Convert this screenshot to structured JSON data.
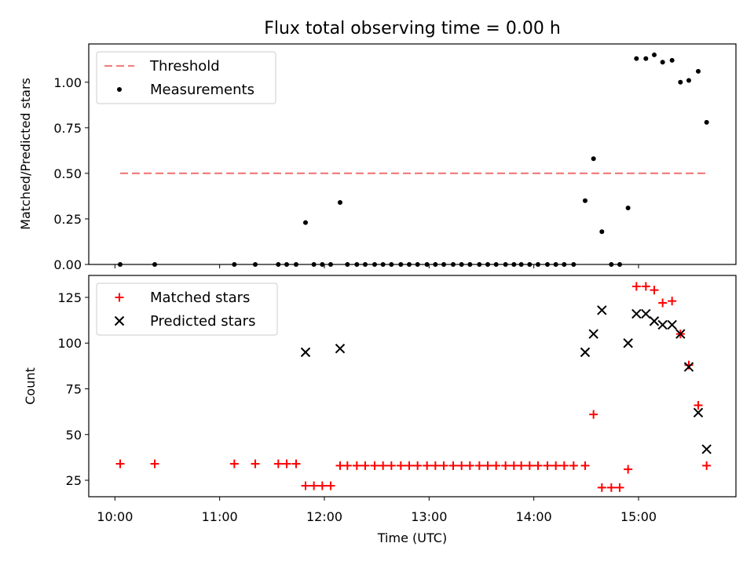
{
  "chart_data": {
    "type": "scatter",
    "title": "Flux total observing time = 0.00 h",
    "xlabel": "Time (UTC)",
    "x_ticks": [
      "10:00",
      "11:00",
      "12:00",
      "13:00",
      "14:00",
      "15:00"
    ],
    "x_tick_hours": [
      10,
      11,
      12,
      13,
      14,
      15
    ],
    "xlim_hours": [
      9.75,
      15.93
    ],
    "panels": [
      {
        "ylabel": "Matched/Predicted stars",
        "ylim": [
          0,
          1.21
        ],
        "y_ticks": [
          "0.00",
          "0.25",
          "0.50",
          "0.75",
          "1.00"
        ],
        "y_tick_values": [
          0,
          0.25,
          0.5,
          0.75,
          1.0
        ],
        "legend_position": "upper-left",
        "series": [
          {
            "name": "Threshold",
            "kind": "dashed-line",
            "color": "#f08080",
            "x": [
              10.05,
              15.67
            ],
            "y": [
              0.5,
              0.5
            ]
          },
          {
            "name": "Measurements",
            "kind": "dot",
            "color": "#000000",
            "x": [
              10.05,
              10.38,
              11.14,
              11.34,
              11.56,
              11.64,
              11.73,
              11.82,
              11.9,
              11.98,
              12.06,
              12.15,
              12.22,
              12.31,
              12.39,
              12.48,
              12.56,
              12.64,
              12.73,
              12.81,
              12.89,
              12.98,
              13.06,
              13.14,
              13.23,
              13.31,
              13.39,
              13.48,
              13.56,
              13.64,
              13.73,
              13.81,
              13.88,
              13.96,
              14.04,
              14.13,
              14.21,
              14.29,
              14.38,
              14.49,
              14.57,
              14.65,
              14.74,
              14.82,
              14.9,
              14.98,
              15.07,
              15.15,
              15.23,
              15.32,
              15.4,
              15.48,
              15.57,
              15.65
            ],
            "y": [
              0,
              0,
              0,
              0,
              0,
              0,
              0,
              0.23,
              0,
              0,
              0,
              0.34,
              0,
              0,
              0,
              0,
              0,
              0,
              0,
              0,
              0,
              0,
              0,
              0,
              0,
              0,
              0,
              0,
              0,
              0,
              0,
              0,
              0,
              0,
              0,
              0,
              0,
              0,
              0,
              0.35,
              0.58,
              0.18,
              0,
              0,
              0.31,
              1.13,
              1.13,
              1.15,
              1.11,
              1.12,
              1.0,
              1.01,
              1.06,
              0.78
            ]
          }
        ]
      },
      {
        "ylabel": "Count",
        "ylim": [
          16,
          137
        ],
        "y_ticks": [
          "25",
          "50",
          "75",
          "100",
          "125"
        ],
        "y_tick_values": [
          25,
          50,
          75,
          100,
          125
        ],
        "legend_position": "upper-left",
        "series": [
          {
            "name": "Matched stars",
            "kind": "plus",
            "color": "#ff0000",
            "x": [
              10.05,
              10.38,
              11.14,
              11.34,
              11.56,
              11.64,
              11.73,
              11.82,
              11.9,
              11.98,
              12.06,
              12.15,
              12.22,
              12.31,
              12.39,
              12.48,
              12.56,
              12.64,
              12.73,
              12.81,
              12.89,
              12.98,
              13.06,
              13.14,
              13.23,
              13.31,
              13.39,
              13.48,
              13.56,
              13.64,
              13.73,
              13.81,
              13.88,
              13.96,
              14.04,
              14.13,
              14.21,
              14.29,
              14.38,
              14.49,
              14.57,
              14.65,
              14.74,
              14.82,
              14.9,
              14.98,
              15.07,
              15.15,
              15.23,
              15.32,
              15.4,
              15.48,
              15.57,
              15.65
            ],
            "y": [
              34,
              34,
              34,
              34,
              34,
              34,
              34,
              22,
              22,
              22,
              22,
              33,
              33,
              33,
              33,
              33,
              33,
              33,
              33,
              33,
              33,
              33,
              33,
              33,
              33,
              33,
              33,
              33,
              33,
              33,
              33,
              33,
              33,
              33,
              33,
              33,
              33,
              33,
              33,
              33,
              61,
              21,
              21,
              21,
              31,
              131,
              131,
              129,
              122,
              123,
              105,
              88,
              66,
              33
            ]
          },
          {
            "name": "Predicted stars",
            "kind": "x",
            "color": "#000000",
            "x": [
              11.82,
              12.15,
              14.49,
              14.57,
              14.65,
              14.9,
              14.98,
              15.07,
              15.15,
              15.23,
              15.32,
              15.4,
              15.48,
              15.57,
              15.65
            ],
            "y": [
              95,
              97,
              95,
              105,
              118,
              100,
              116,
              116,
              112,
              110,
              110,
              105,
              87,
              62,
              42
            ]
          }
        ]
      }
    ]
  }
}
